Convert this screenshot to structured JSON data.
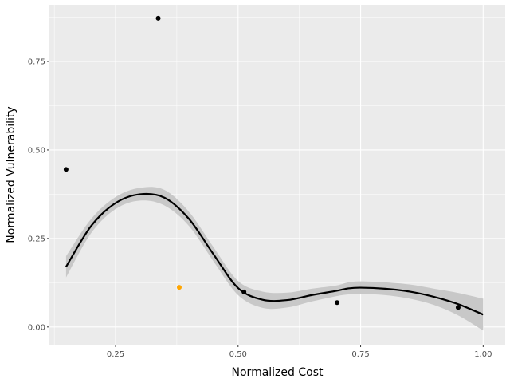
{
  "chart_data": {
    "type": "scatter",
    "xlabel": "Normalized Cost",
    "ylabel": "Normalized Vulnerability",
    "xlim": [
      0.115,
      1.045
    ],
    "ylim": [
      -0.05,
      0.91
    ],
    "x_ticks": [
      0.25,
      0.5,
      0.75,
      1.0
    ],
    "x_tick_labels": [
      "0.25",
      "0.50",
      "0.75",
      "1.00"
    ],
    "y_ticks": [
      0.0,
      0.25,
      0.5,
      0.75
    ],
    "y_tick_labels": [
      "0.00",
      "0.25",
      "0.50",
      "0.75"
    ],
    "grid": true,
    "legend": "none",
    "colors": {
      "panel": "#ebebeb",
      "grid": "#ffffff",
      "point": "#000000",
      "highlight": "#ffa500",
      "ribbon": "#c8c8c8",
      "line": "#000000"
    },
    "points": [
      {
        "x": 0.149,
        "y": 0.445,
        "color": "#000000"
      },
      {
        "x": 0.337,
        "y": 0.872,
        "color": "#000000"
      },
      {
        "x": 0.38,
        "y": 0.112,
        "color": "#ffa500"
      },
      {
        "x": 0.512,
        "y": 0.099,
        "color": "#000000"
      },
      {
        "x": 0.702,
        "y": 0.069,
        "color": "#000000"
      },
      {
        "x": 0.949,
        "y": 0.055,
        "color": "#000000"
      }
    ],
    "smooth": {
      "x": [
        0.149,
        0.2,
        0.25,
        0.3,
        0.35,
        0.4,
        0.45,
        0.5,
        0.55,
        0.6,
        0.65,
        0.7,
        0.725,
        0.75,
        0.8,
        0.85,
        0.9,
        0.95,
        1.0
      ],
      "y": [
        0.17,
        0.285,
        0.35,
        0.375,
        0.365,
        0.305,
        0.205,
        0.11,
        0.077,
        0.076,
        0.09,
        0.102,
        0.109,
        0.111,
        0.108,
        0.1,
        0.085,
        0.064,
        0.035
      ],
      "lower": [
        0.14,
        0.265,
        0.333,
        0.357,
        0.343,
        0.285,
        0.185,
        0.09,
        0.054,
        0.055,
        0.072,
        0.087,
        0.092,
        0.093,
        0.09,
        0.08,
        0.062,
        0.032,
        -0.01
      ],
      "upper": [
        0.2,
        0.305,
        0.367,
        0.393,
        0.387,
        0.325,
        0.225,
        0.13,
        0.1,
        0.097,
        0.108,
        0.117,
        0.126,
        0.129,
        0.126,
        0.12,
        0.108,
        0.096,
        0.08
      ]
    }
  }
}
